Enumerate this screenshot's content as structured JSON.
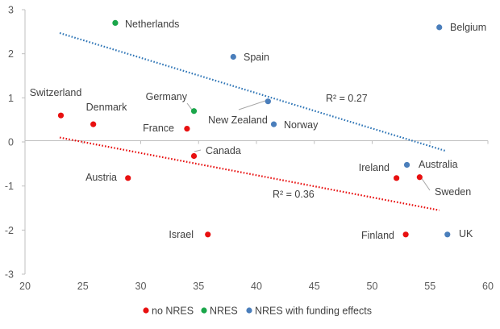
{
  "chart_data": {
    "type": "scatter",
    "title": "",
    "xlabel": "",
    "ylabel": "",
    "xlim": [
      20,
      60
    ],
    "ylim": [
      -3,
      3
    ],
    "xticks": [
      20,
      25,
      30,
      35,
      40,
      45,
      50,
      55,
      60
    ],
    "yticks": [
      -3,
      -2,
      -1,
      0,
      1,
      2,
      3
    ],
    "grid": false,
    "legend_position": "bottom",
    "colors": {
      "no NRES": "#e81010",
      "NRES": "#1aa64a",
      "NRES with funding effects": "#4a7ebb"
    },
    "series": [
      {
        "name": "no NRES",
        "points": [
          {
            "label": "Switzerland",
            "x": 23.1,
            "y": 0.6
          },
          {
            "label": "Denmark",
            "x": 25.9,
            "y": 0.4
          },
          {
            "label": "France",
            "x": 34.0,
            "y": 0.3
          },
          {
            "label": "Canada",
            "x": 34.6,
            "y": -0.32
          },
          {
            "label": "Austria",
            "x": 28.9,
            "y": -0.82
          },
          {
            "label": "Israel",
            "x": 35.8,
            "y": -2.1
          },
          {
            "label": "Ireland",
            "x": 52.1,
            "y": -0.82
          },
          {
            "label": "Sweden",
            "x": 54.1,
            "y": -0.8
          },
          {
            "label": "Finland",
            "x": 52.9,
            "y": -2.1
          }
        ]
      },
      {
        "name": "NRES",
        "points": [
          {
            "label": "Netherlands",
            "x": 27.8,
            "y": 2.7
          },
          {
            "label": "Germany",
            "x": 34.6,
            "y": 0.7
          }
        ]
      },
      {
        "name": "NRES with funding effects",
        "points": [
          {
            "label": "Belgium",
            "x": 55.8,
            "y": 2.6
          },
          {
            "label": "Spain",
            "x": 38.0,
            "y": 1.93
          },
          {
            "label": "New Zealand",
            "x": 41.0,
            "y": 0.92
          },
          {
            "label": "Norway",
            "x": 41.5,
            "y": 0.4
          },
          {
            "label": "Australia",
            "x": 53.0,
            "y": -0.52
          },
          {
            "label": "UK",
            "x": 56.5,
            "y": -2.1
          }
        ]
      }
    ],
    "trendlines": [
      {
        "series": "NRES with funding effects",
        "x": [
          23.0,
          56.3
        ],
        "y": [
          2.47,
          -0.2
        ],
        "r2_label": "R² = 0.27",
        "color": "#2e75b6"
      },
      {
        "series": "no NRES",
        "x": [
          23.0,
          55.8
        ],
        "y": [
          0.1,
          -1.55
        ],
        "r2_label": "R² = 0.36",
        "color": "#e81010"
      }
    ]
  }
}
